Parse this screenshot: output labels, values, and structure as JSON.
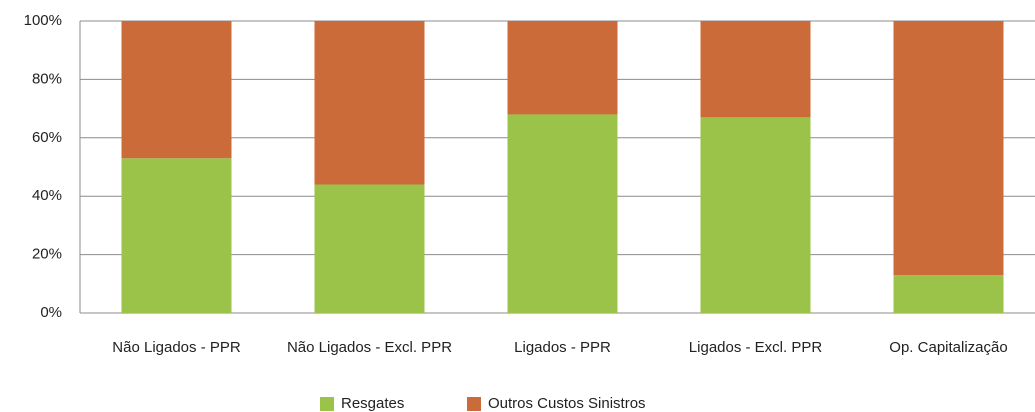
{
  "chart_data": {
    "type": "stacked_bar",
    "categories": [
      "Não Ligados - PPR",
      "Não Ligados - Excl. PPR",
      "Ligados - PPR",
      "Ligados - Excl. PPR",
      "Op. Capitalização"
    ],
    "series": [
      {
        "name": "Resgates",
        "color": "#9bc34a",
        "values": [
          53,
          44,
          68,
          67,
          13
        ]
      },
      {
        "name": "Outros Custos Sinistros",
        "color": "#cc6b3a",
        "values": [
          47,
          56,
          32,
          33,
          87
        ]
      }
    ],
    "ylim": [
      0,
      100
    ],
    "yticks": [
      {
        "value": 0,
        "label": "0%"
      },
      {
        "value": 20,
        "label": "20%"
      },
      {
        "value": 40,
        "label": "40%"
      },
      {
        "value": 60,
        "label": "60%"
      },
      {
        "value": 80,
        "label": "80%"
      },
      {
        "value": 100,
        "label": "100%"
      }
    ],
    "grid": true,
    "legend": "bottom"
  }
}
